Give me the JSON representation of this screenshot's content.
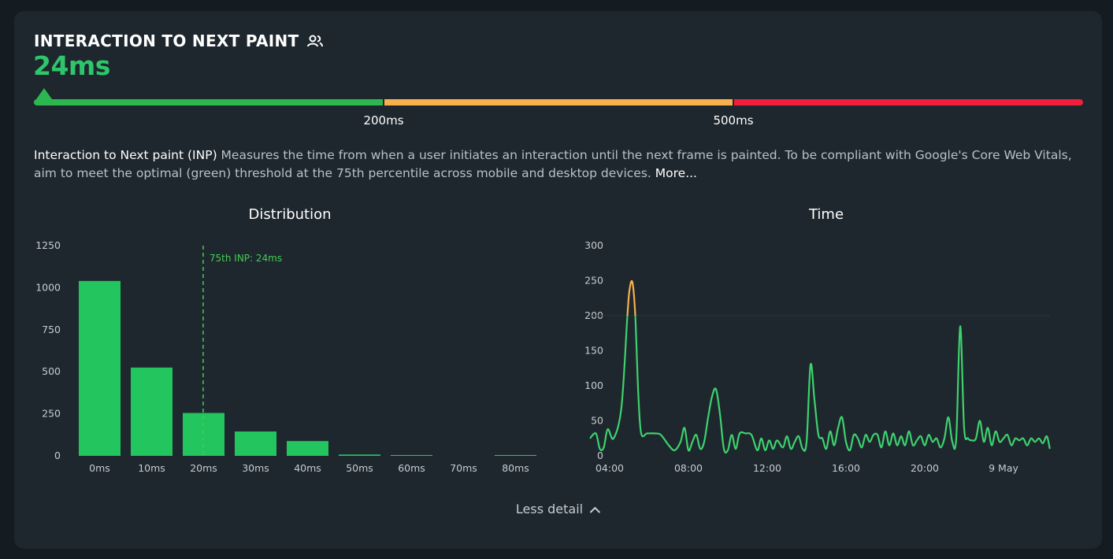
{
  "header": {
    "title": "INTERACTION TO NEXT PAINT",
    "value": "24ms"
  },
  "thresholds": {
    "labels": [
      "200ms",
      "500ms"
    ],
    "colors": {
      "good": "#2cb84f",
      "needs_improvement": "#f7b04a",
      "poor": "#f01f3c"
    }
  },
  "description": {
    "term": "Interaction to Next paint (INP)",
    "text": " Measures the time from when a user initiates an interaction until the next frame is painted. To be compliant with Google's Core Web Vitals, aim to meet the optimal (green) threshold at the 75th percentile across mobile and desktop devices. ",
    "more": "More..."
  },
  "footer": {
    "less_detail": "Less detail"
  },
  "chart_data": [
    {
      "type": "bar",
      "title": "Distribution",
      "categories": [
        "0ms",
        "10ms",
        "20ms",
        "30ms",
        "40ms",
        "50ms",
        "60ms",
        "70ms",
        "80ms"
      ],
      "values": [
        1040,
        525,
        255,
        145,
        88,
        8,
        5,
        0,
        5
      ],
      "yticks": [
        0,
        250,
        500,
        750,
        1000,
        1250
      ],
      "ylim": [
        0,
        1250
      ],
      "color": "#22c55e",
      "reference_line": {
        "x": 24,
        "label": "75th INP: 24ms",
        "color": "#44cc55"
      }
    },
    {
      "type": "line",
      "title": "Time",
      "yticks": [
        0,
        50,
        100,
        150,
        200,
        250,
        300
      ],
      "ylim": [
        0,
        300
      ],
      "xtick_labels": [
        "04:00",
        "08:00",
        "12:00",
        "16:00",
        "20:00",
        "9 May"
      ],
      "xtick_hours": [
        4,
        8,
        12,
        16,
        20,
        24
      ],
      "threshold": 200,
      "colors": {
        "below": "#3ed26e",
        "above": "#f7b04a"
      },
      "points": [
        [
          3.0,
          25
        ],
        [
          3.3,
          32
        ],
        [
          3.5,
          10
        ],
        [
          3.7,
          12
        ],
        [
          3.9,
          38
        ],
        [
          4.2,
          25
        ],
        [
          4.6,
          70
        ],
        [
          4.9,
          200
        ],
        [
          5.0,
          235
        ],
        [
          5.15,
          248
        ],
        [
          5.3,
          200
        ],
        [
          5.45,
          90
        ],
        [
          5.6,
          32
        ],
        [
          5.9,
          32
        ],
        [
          6.3,
          32
        ],
        [
          6.6,
          30
        ],
        [
          7.0,
          15
        ],
        [
          7.3,
          8
        ],
        [
          7.6,
          20
        ],
        [
          7.8,
          40
        ],
        [
          8.0,
          8
        ],
        [
          8.2,
          20
        ],
        [
          8.4,
          30
        ],
        [
          8.6,
          10
        ],
        [
          8.8,
          20
        ],
        [
          9.0,
          55
        ],
        [
          9.2,
          85
        ],
        [
          9.4,
          95
        ],
        [
          9.6,
          60
        ],
        [
          9.8,
          10
        ],
        [
          10.0,
          8
        ],
        [
          10.2,
          30
        ],
        [
          10.4,
          10
        ],
        [
          10.6,
          32
        ],
        [
          10.9,
          32
        ],
        [
          11.2,
          30
        ],
        [
          11.5,
          8
        ],
        [
          11.7,
          25
        ],
        [
          11.9,
          8
        ],
        [
          12.1,
          22
        ],
        [
          12.3,
          10
        ],
        [
          12.5,
          22
        ],
        [
          12.8,
          12
        ],
        [
          13.0,
          28
        ],
        [
          13.2,
          10
        ],
        [
          13.4,
          20
        ],
        [
          13.6,
          28
        ],
        [
          13.8,
          10
        ],
        [
          14.0,
          20
        ],
        [
          14.2,
          130
        ],
        [
          14.4,
          80
        ],
        [
          14.6,
          30
        ],
        [
          14.8,
          25
        ],
        [
          15.0,
          10
        ],
        [
          15.2,
          35
        ],
        [
          15.4,
          15
        ],
        [
          15.6,
          40
        ],
        [
          15.8,
          55
        ],
        [
          16.0,
          20
        ],
        [
          16.2,
          8
        ],
        [
          16.4,
          30
        ],
        [
          16.6,
          25
        ],
        [
          16.8,
          12
        ],
        [
          17.0,
          30
        ],
        [
          17.2,
          20
        ],
        [
          17.4,
          30
        ],
        [
          17.6,
          30
        ],
        [
          17.8,
          12
        ],
        [
          18.0,
          35
        ],
        [
          18.2,
          15
        ],
        [
          18.4,
          32
        ],
        [
          18.6,
          15
        ],
        [
          18.8,
          28
        ],
        [
          19.0,
          15
        ],
        [
          19.2,
          35
        ],
        [
          19.4,
          15
        ],
        [
          19.6,
          22
        ],
        [
          19.8,
          28
        ],
        [
          20.0,
          15
        ],
        [
          20.2,
          30
        ],
        [
          20.4,
          20
        ],
        [
          20.6,
          25
        ],
        [
          20.8,
          12
        ],
        [
          21.0,
          25
        ],
        [
          21.2,
          55
        ],
        [
          21.4,
          20
        ],
        [
          21.6,
          25
        ],
        [
          21.8,
          185
        ],
        [
          22.0,
          40
        ],
        [
          22.2,
          25
        ],
        [
          22.4,
          22
        ],
        [
          22.6,
          25
        ],
        [
          22.8,
          50
        ],
        [
          23.0,
          20
        ],
        [
          23.2,
          40
        ],
        [
          23.4,
          15
        ],
        [
          23.6,
          35
        ],
        [
          23.8,
          20
        ],
        [
          24.0,
          25
        ],
        [
          24.2,
          30
        ],
        [
          24.4,
          15
        ],
        [
          24.6,
          25
        ],
        [
          24.8,
          22
        ],
        [
          25.0,
          25
        ],
        [
          25.2,
          15
        ],
        [
          25.4,
          25
        ],
        [
          25.6,
          20
        ],
        [
          25.8,
          25
        ],
        [
          26.0,
          18
        ],
        [
          26.2,
          28
        ],
        [
          26.35,
          10
        ]
      ]
    }
  ]
}
